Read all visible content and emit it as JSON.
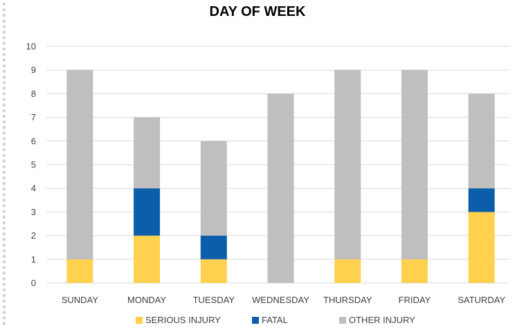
{
  "chart_data": {
    "type": "bar",
    "stacked": true,
    "title": "DAY OF WEEK",
    "categories": [
      "SUNDAY",
      "MONDAY",
      "TUESDAY",
      "WEDNESDAY",
      "THURSDAY",
      "FRIDAY",
      "SATURDAY"
    ],
    "series": [
      {
        "name": "SERIOUS INJURY",
        "color": "#FFD14F",
        "values": [
          1,
          2,
          1,
          0,
          1,
          1,
          3
        ]
      },
      {
        "name": "FATAL",
        "color": "#0C5EAB",
        "values": [
          0,
          2,
          1,
          0,
          0,
          0,
          1
        ]
      },
      {
        "name": "OTHER INJURY",
        "color": "#BFBFBF",
        "values": [
          8,
          3,
          4,
          8,
          8,
          8,
          4
        ]
      }
    ],
    "ylim": [
      0,
      10
    ],
    "yticks": [
      0,
      1,
      2,
      3,
      4,
      5,
      6,
      7,
      8,
      9,
      10
    ],
    "grid": true,
    "legend_position": "bottom",
    "xlabel": "",
    "ylabel": ""
  }
}
